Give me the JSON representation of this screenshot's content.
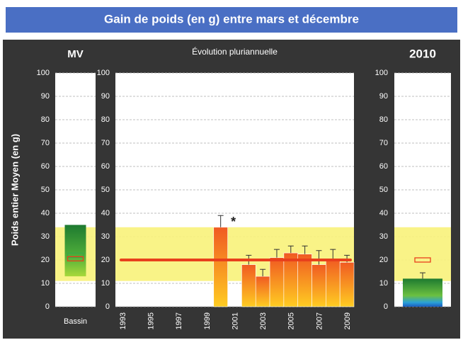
{
  "header": {
    "title": "Gain de poids (en g) entre mars et décembre"
  },
  "y_label": "Poids entier Moyen (en g)",
  "chart_data": [
    {
      "type": "box",
      "title": "MV",
      "categories": [
        "Bassin"
      ],
      "ylim": [
        0,
        100
      ],
      "yticks": [
        0,
        10,
        20,
        30,
        40,
        50,
        60,
        70,
        80,
        90,
        100
      ],
      "grid": true,
      "reference_band": [
        11,
        34
      ],
      "range_box": [
        13,
        35
      ],
      "markers": [
        {
          "color": "#3aa845",
          "value": 22
        },
        {
          "color": "#e8401c",
          "value": 20.5
        }
      ]
    },
    {
      "type": "bar",
      "title": "Évolution pluriannuelle",
      "categories": [
        "1993",
        null,
        "1995",
        null,
        "1997",
        null,
        "1999",
        null,
        "2001",
        null,
        "2003",
        null,
        "2005",
        null,
        "2007",
        null,
        "2009"
      ],
      "values": [
        null,
        null,
        null,
        null,
        null,
        null,
        null,
        34,
        null,
        18,
        13,
        21,
        23,
        22.5,
        18,
        20.5,
        19
      ],
      "errors": [
        null,
        null,
        null,
        null,
        null,
        null,
        null,
        5,
        null,
        4,
        3,
        3.5,
        3,
        3.5,
        6,
        4,
        3
      ],
      "ylim": [
        0,
        100
      ],
      "yticks": [
        0,
        10,
        20,
        30,
        40,
        50,
        60,
        70,
        80,
        90,
        100
      ],
      "grid": true,
      "reference_band": [
        11,
        34
      ],
      "reference_line": 20,
      "line_color": "#e8401c",
      "annotation": "*",
      "annotation_at": 7
    },
    {
      "type": "bar",
      "title": "2010",
      "values": [
        12
      ],
      "errors": [
        2.5
      ],
      "ylim": [
        0,
        100
      ],
      "yticks": [
        0,
        10,
        20,
        30,
        40,
        50,
        60,
        70,
        80,
        90,
        100
      ],
      "grid": true,
      "reference_band": [
        11,
        34
      ],
      "markers": [
        {
          "color": "#e8401c",
          "value": 20
        }
      ]
    }
  ]
}
